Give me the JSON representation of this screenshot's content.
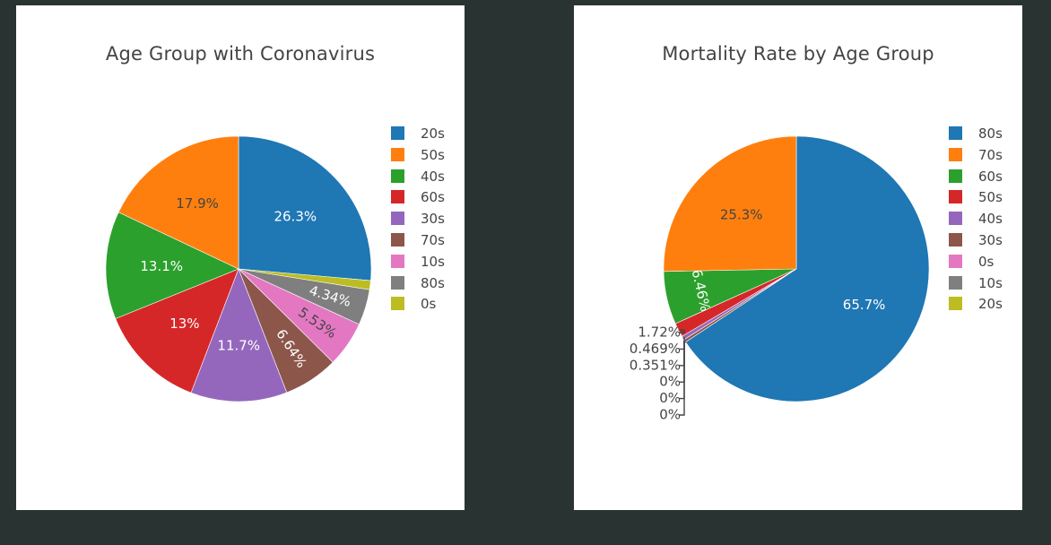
{
  "chart_data": [
    {
      "type": "pie",
      "title": "Age Group with Coronavirus",
      "slices": [
        {
          "label": "20s",
          "value": 26.3,
          "text": "26.3%",
          "color": "#1f77b4",
          "text_color": "#ffffff",
          "text_mode": "inside",
          "angle": "h"
        },
        {
          "label": "0s",
          "value": 1.1,
          "text": "",
          "color": "#bcbd22",
          "text_color": "#ffffff",
          "text_mode": "none",
          "angle": "h"
        },
        {
          "label": "80s",
          "value": 4.34,
          "text": "4.34%",
          "color": "#7f7f7f",
          "text_color": "#ffffff",
          "text_mode": "inside",
          "angle": "r"
        },
        {
          "label": "10s",
          "value": 5.53,
          "text": "5.53%",
          "color": "#e377c2",
          "text_color": "#444444",
          "text_mode": "inside",
          "angle": "r"
        },
        {
          "label": "70s",
          "value": 6.64,
          "text": "6.64%",
          "color": "#8c564b",
          "text_color": "#ffffff",
          "text_mode": "inside",
          "angle": "r"
        },
        {
          "label": "30s",
          "value": 11.7,
          "text": "11.7%",
          "color": "#9467bd",
          "text_color": "#ffffff",
          "text_mode": "inside",
          "angle": "h"
        },
        {
          "label": "60s",
          "value": 13.0,
          "text": "13%",
          "color": "#d62728",
          "text_color": "#ffffff",
          "text_mode": "inside",
          "angle": "h"
        },
        {
          "label": "40s",
          "value": 13.1,
          "text": "13.1%",
          "color": "#2ca02c",
          "text_color": "#ffffff",
          "text_mode": "inside",
          "angle": "h"
        },
        {
          "label": "50s",
          "value": 17.9,
          "text": "17.9%",
          "color": "#ff7f0e",
          "text_color": "#444444",
          "text_mode": "inside",
          "angle": "h"
        }
      ],
      "legend": [
        "20s",
        "50s",
        "40s",
        "60s",
        "30s",
        "70s",
        "10s",
        "80s",
        "0s"
      ],
      "legend_placement": "right"
    },
    {
      "type": "pie",
      "title": "Mortality Rate by Age Group",
      "slices": [
        {
          "label": "80s",
          "value": 65.7,
          "text": "65.7%",
          "color": "#1f77b4",
          "text_color": "#ffffff",
          "text_mode": "inside",
          "angle": "h"
        },
        {
          "label": "0s",
          "value": 0,
          "text": "0%",
          "color": "#e377c2",
          "text_color": "#444444",
          "text_mode": "outside"
        },
        {
          "label": "10s",
          "value": 0,
          "text": "0%",
          "color": "#7f7f7f",
          "text_color": "#444444",
          "text_mode": "outside"
        },
        {
          "label": "20s",
          "value": 0,
          "text": "0%",
          "color": "#bcbd22",
          "text_color": "#444444",
          "text_mode": "outside"
        },
        {
          "label": "30s",
          "value": 0.351,
          "text": "0.351%",
          "color": "#8c564b",
          "text_color": "#444444",
          "text_mode": "outside"
        },
        {
          "label": "40s",
          "value": 0.469,
          "text": "0.469%",
          "color": "#9467bd",
          "text_color": "#444444",
          "text_mode": "outside"
        },
        {
          "label": "50s",
          "value": 1.72,
          "text": "1.72%",
          "color": "#d62728",
          "text_color": "#444444",
          "text_mode": "outside"
        },
        {
          "label": "60s",
          "value": 6.46,
          "text": "6.46%",
          "color": "#2ca02c",
          "text_color": "#ffffff",
          "text_mode": "inside",
          "angle": "t"
        },
        {
          "label": "70s",
          "value": 25.3,
          "text": "25.3%",
          "color": "#ff7f0e",
          "text_color": "#444444",
          "text_mode": "inside",
          "angle": "h"
        }
      ],
      "legend": [
        "80s",
        "70s",
        "60s",
        "50s",
        "40s",
        "30s",
        "0s",
        "10s",
        "20s"
      ],
      "legend_placement": "right"
    }
  ]
}
